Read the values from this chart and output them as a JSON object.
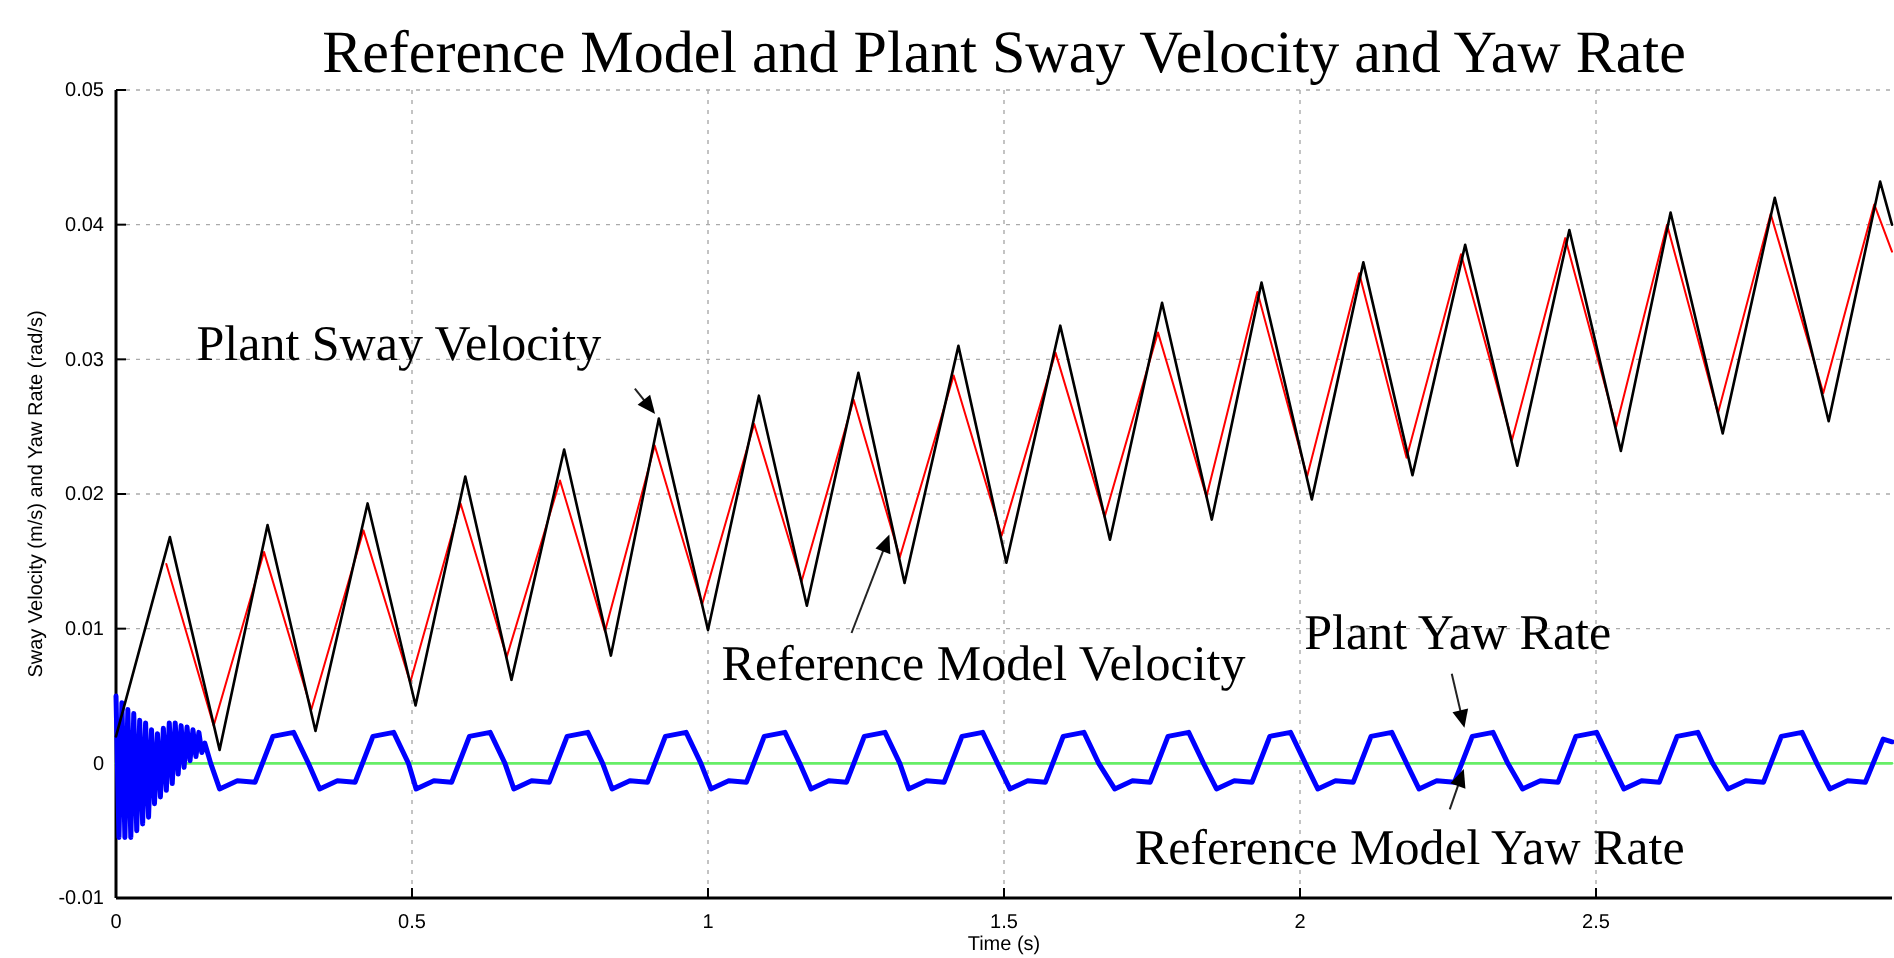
{
  "chart_data": {
    "type": "line",
    "title": "Reference Model and Plant Sway Velocity and Yaw Rate",
    "xlabel": "Time (s)",
    "ylabel": "Sway Velocity (m/s) and Yaw Rate (rad/s)",
    "xlim": [
      0,
      3
    ],
    "xticks": [
      0,
      0.5,
      1,
      1.5,
      2,
      2.5
    ],
    "ylim": [
      -0.01,
      0.05
    ],
    "yticks": [
      -0.01,
      0,
      0.01,
      0.02,
      0.03,
      0.04,
      0.05
    ],
    "grid": true,
    "marker": "none",
    "line_style": "solid",
    "annotations": [
      {
        "text": "Plant Sway Velocity",
        "x": 0.917,
        "y": 0.0256
      },
      {
        "text": "Reference Model Velocity",
        "x": 1.31,
        "y": 0.0174
      },
      {
        "text": "Plant Yaw Rate",
        "x": 2.28,
        "y": 0.0022
      },
      {
        "text": "Reference Model Yaw Rate",
        "x": 2.28,
        "y": 0
      }
    ],
    "series": [
      {
        "color": "#66ee66",
        "x": [
          0,
          3
        ],
        "values": [
          0,
          0
        ]
      },
      {
        "color": "#0000ff",
        "x": [
          0,
          0.005,
          0.01,
          0.015,
          0.02,
          0.025,
          0.03,
          0.035,
          0.04,
          0.045,
          0.05,
          0.055,
          0.06,
          0.065,
          0.07,
          0.075,
          0.08,
          0.085,
          0.09,
          0.095,
          0.1,
          0.105,
          0.11,
          0.115,
          0.12,
          0.125,
          0.13,
          0.135,
          0.14,
          0.145,
          0.15,
          0.16,
          0.175,
          0.205,
          0.235,
          0.265,
          0.3,
          0.325,
          0.344,
          0.374,
          0.404,
          0.434,
          0.469,
          0.494,
          0.507,
          0.537,
          0.567,
          0.597,
          0.632,
          0.657,
          0.672,
          0.702,
          0.732,
          0.762,
          0.797,
          0.822,
          0.838,
          0.868,
          0.898,
          0.928,
          0.963,
          0.988,
          1.005,
          1.035,
          1.065,
          1.095,
          1.13,
          1.155,
          1.174,
          1.204,
          1.234,
          1.264,
          1.299,
          1.324,
          1.339,
          1.369,
          1.399,
          1.429,
          1.464,
          1.489,
          1.51,
          1.54,
          1.57,
          1.6,
          1.635,
          1.66,
          1.687,
          1.717,
          1.747,
          1.777,
          1.812,
          1.837,
          1.859,
          1.889,
          1.919,
          1.949,
          1.984,
          2.009,
          2.03,
          2.06,
          2.09,
          2.12,
          2.155,
          2.18,
          2.201,
          2.231,
          2.261,
          2.291,
          2.326,
          2.351,
          2.376,
          2.406,
          2.436,
          2.466,
          2.501,
          2.526,
          2.547,
          2.577,
          2.607,
          2.637,
          2.672,
          2.697,
          2.723,
          2.753,
          2.783,
          2.813,
          2.848,
          2.873,
          2.895,
          2.925,
          2.955,
          2.985,
          3.0
        ],
        "values": [
          0.005,
          -0.0055,
          0.0045,
          -0.0055,
          0.004,
          -0.0055,
          0.0037,
          -0.005,
          0.0032,
          -0.0045,
          0.003,
          -0.004,
          0.0025,
          -0.003,
          0.0022,
          -0.0025,
          0.0026,
          -0.002,
          0.003,
          -0.0015,
          0.003,
          -0.0008,
          0.0028,
          -0.0003,
          0.0027,
          0.0002,
          0.0025,
          0.0005,
          0.0023,
          0.0008,
          0.0015,
          0,
          -0.0019,
          -0.0013,
          -0.0014,
          0.002,
          0.0023,
          0,
          -0.0019,
          -0.0013,
          -0.0014,
          0.002,
          0.0023,
          0,
          -0.0019,
          -0.0013,
          -0.0014,
          0.002,
          0.0023,
          0,
          -0.0019,
          -0.0013,
          -0.0014,
          0.002,
          0.0023,
          0,
          -0.0019,
          -0.0013,
          -0.0014,
          0.002,
          0.0023,
          0,
          -0.0019,
          -0.0013,
          -0.0014,
          0.002,
          0.0023,
          0,
          -0.0019,
          -0.0013,
          -0.0014,
          0.002,
          0.0023,
          0,
          -0.0019,
          -0.0013,
          -0.0014,
          0.002,
          0.0023,
          0,
          -0.0019,
          -0.0013,
          -0.0014,
          0.002,
          0.0023,
          0,
          -0.0019,
          -0.0013,
          -0.0014,
          0.002,
          0.0023,
          0,
          -0.0019,
          -0.0013,
          -0.0014,
          0.002,
          0.0023,
          0,
          -0.0019,
          -0.0013,
          -0.0014,
          0.002,
          0.0023,
          0,
          -0.0019,
          -0.0013,
          -0.0014,
          0.002,
          0.0023,
          0,
          -0.0019,
          -0.0013,
          -0.0014,
          0.002,
          0.0023,
          0,
          -0.0019,
          -0.0013,
          -0.0014,
          0.002,
          0.0023,
          0,
          -0.0019,
          -0.0013,
          -0.0014,
          0.002,
          0.0023,
          0,
          -0.0019,
          -0.0013,
          -0.0014,
          0.0018,
          0.0016
        ]
      },
      {
        "color": "#ff0000",
        "x": [
          0.085,
          0.165,
          0.25,
          0.33,
          0.418,
          0.497,
          0.582,
          0.66,
          0.75,
          0.826,
          0.91,
          0.99,
          1.078,
          1.158,
          1.246,
          1.324,
          1.415,
          1.496,
          1.587,
          1.67,
          1.76,
          1.842,
          1.928,
          2.012,
          2.1,
          2.18,
          2.272,
          2.358,
          2.448,
          2.534,
          2.62,
          2.706,
          2.795,
          2.884,
          2.97,
          3.0
        ],
        "values": [
          0.0148,
          0.0028,
          0.0157,
          0.004,
          0.0173,
          0.006,
          0.0193,
          0.0079,
          0.021,
          0.0098,
          0.0236,
          0.0118,
          0.0252,
          0.0135,
          0.027,
          0.0153,
          0.0288,
          0.0169,
          0.0305,
          0.0183,
          0.032,
          0.0198,
          0.035,
          0.0213,
          0.0364,
          0.0227,
          0.0378,
          0.024,
          0.039,
          0.025,
          0.04,
          0.026,
          0.0408,
          0.0275,
          0.0415,
          0.038
        ]
      },
      {
        "color": "#000000",
        "x": [
          0,
          0.091,
          0.175,
          0.256,
          0.337,
          0.425,
          0.506,
          0.59,
          0.668,
          0.757,
          0.836,
          0.917,
          1.0,
          1.086,
          1.167,
          1.254,
          1.332,
          1.423,
          1.504,
          1.595,
          1.679,
          1.767,
          1.851,
          1.935,
          2.02,
          2.107,
          2.19,
          2.279,
          2.367,
          2.455,
          2.542,
          2.626,
          2.714,
          2.802,
          2.893,
          2.98,
          3.0
        ],
        "values": [
          0.002,
          0.0168,
          0.001,
          0.0177,
          0.0024,
          0.0193,
          0.0043,
          0.0213,
          0.0062,
          0.0233,
          0.008,
          0.0256,
          0.0099,
          0.0273,
          0.0117,
          0.029,
          0.0134,
          0.031,
          0.0149,
          0.0325,
          0.0166,
          0.0342,
          0.0181,
          0.0357,
          0.0196,
          0.0372,
          0.0214,
          0.0385,
          0.0221,
          0.0396,
          0.0232,
          0.0409,
          0.0245,
          0.042,
          0.0254,
          0.0432,
          0.04
        ]
      }
    ]
  }
}
